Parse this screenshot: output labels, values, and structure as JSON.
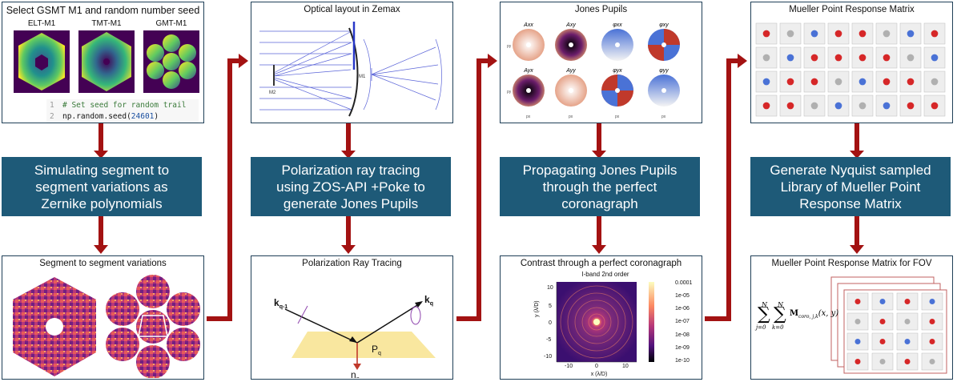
{
  "stages": [
    {
      "top_title": "Select GSMT M1 and random number seed",
      "mirror_labels": [
        "ELT-M1",
        "TMT-M1",
        "GMT-M1"
      ],
      "code": [
        {
          "line": "1",
          "text": "# Set seed for random trail"
        },
        {
          "line": "2",
          "text_pre": "np.random.seed(",
          "text_num": "24601",
          "text_post": ")"
        }
      ],
      "process": "Simulating segment to\nsegment variations as\nZernike polynomials",
      "bottom_title": "Segment to segment variations"
    },
    {
      "top_title": "Optical layout in Zemax",
      "optics_labels": [
        "M2",
        "M1"
      ],
      "process": "Polarization ray tracing\nusing ZOS-API +Poke to\ngenerate Jones Pupils",
      "bottom_title": "Polarization Ray Tracing",
      "ray_labels": {
        "k_in": "k",
        "k_in_sub": "q-1",
        "k_out": "k",
        "k_out_sub": "q",
        "plane": "P",
        "plane_sub": "q",
        "normal": "η",
        "normal_sub": "q"
      }
    },
    {
      "top_title": "Jones Pupils",
      "pupil_titles": [
        "Axx",
        "Axy",
        "φxx",
        "φxy",
        "Ayx",
        "Ayy",
        "φyx",
        "φyy"
      ],
      "pupil_axis_x": "px",
      "pupil_axis_y": "py",
      "process": "Propagating Jones Pupils\nthrough the perfect\ncoronagraph",
      "bottom_title": "Contrast through a perfect coronagraph",
      "plot_subtitle": "I-band 2nd order",
      "xlabel": "x (λ/D)",
      "ylabel": "y (λ/D)",
      "xticks": [
        "-10",
        "0",
        "10"
      ],
      "yticks": [
        "10",
        "5",
        "0",
        "-5",
        "-10"
      ],
      "colorbar_ticks": [
        "0.0001",
        "1e-05",
        "1e-06",
        "1e-07",
        "1e-08",
        "1e-09",
        "1e-10"
      ]
    },
    {
      "top_title": "Mueller Point Response Matrix",
      "process": "Generate Nyquist sampled\nLibrary of  Mueller Point\nResponse Matrix",
      "bottom_title": "Mueller Point Response Matrix for FOV",
      "sum_upper": "N",
      "sum_lower_j": "j=0",
      "sum_lower_k": "k=0",
      "sum_symbol": "M",
      "sum_sub": "coro, j,k",
      "sum_args": "(x, y)"
    }
  ],
  "colors": {
    "process_fill": "#1e5a78",
    "arrow": "#a31212",
    "box_border": "#1f3f57"
  }
}
